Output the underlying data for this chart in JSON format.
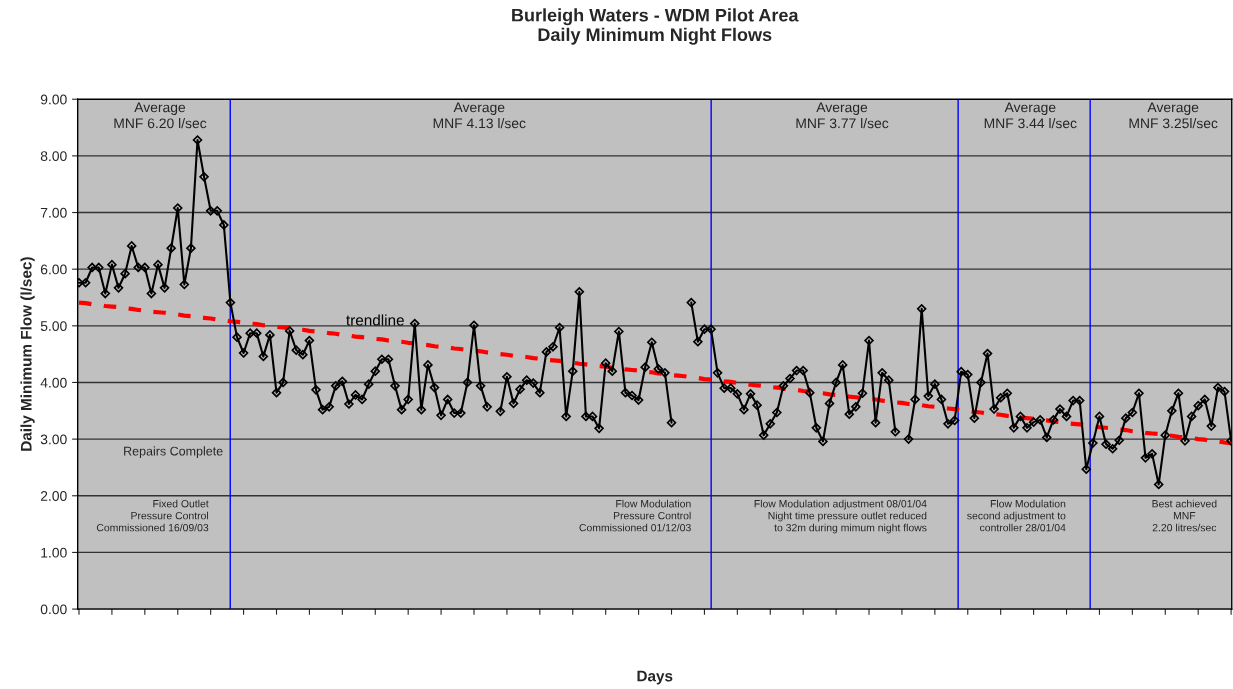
{
  "chart_data": {
    "type": "line",
    "title": "Burleigh Waters - WDM Pilot Area\nDaily Minimum Night Flows",
    "xlabel": "Days",
    "ylabel": "Daily Minimum Flow (l/sec)",
    "categories": [
      null,
      null,
      null,
      null,
      null,
      null,
      null,
      null,
      null,
      null,
      null,
      null,
      null,
      null,
      null,
      null,
      null,
      null,
      null,
      null,
      null,
      null,
      null,
      null,
      null,
      null,
      null,
      null,
      null,
      null,
      null,
      null,
      null,
      null,
      null,
      null,
      null,
      null,
      null,
      null,
      null,
      null,
      null,
      null,
      null,
      null,
      null,
      null,
      null,
      null,
      null,
      null,
      null,
      null,
      null,
      null,
      null,
      null,
      null,
      null,
      null,
      null,
      null,
      null,
      null,
      null,
      null,
      null,
      null,
      null,
      null,
      null,
      null,
      null,
      null,
      null,
      null,
      null,
      null,
      null,
      null,
      null,
      null,
      null,
      null,
      null,
      null,
      null,
      null,
      null,
      null,
      null,
      null,
      null,
      null,
      null,
      null,
      null,
      null,
      null,
      null,
      null,
      null,
      null,
      null,
      null,
      null,
      null,
      null,
      null,
      null,
      null,
      null,
      null,
      null,
      null,
      null,
      null,
      null,
      null,
      null,
      null,
      null,
      null,
      null,
      null,
      null,
      null,
      null,
      null,
      null,
      null,
      null,
      null,
      null,
      null,
      null,
      null,
      null,
      null,
      null,
      null,
      null,
      null,
      null,
      null,
      null,
      null,
      null,
      null,
      null,
      null,
      null,
      null,
      null,
      null,
      null,
      null,
      null,
      null,
      null,
      null,
      null,
      null,
      null,
      null,
      null,
      null,
      null,
      null,
      null,
      null,
      null,
      null,
      null,
      null
    ],
    "series": [
      {
        "color": "#000000",
        "marker": "diamond",
        "line_style": "solid",
        "values": [
          5.76,
          5.76,
          6.03,
          6.03,
          5.57,
          6.08,
          5.67,
          5.92,
          6.41,
          6.03,
          6.03,
          5.57,
          6.08,
          5.67,
          6.37,
          7.08,
          5.73,
          6.37,
          8.28,
          7.63,
          7.03,
          7.03,
          6.78,
          5.41,
          4.8,
          4.52,
          4.87,
          4.87,
          4.46,
          4.84,
          3.82,
          4.0,
          4.91,
          4.57,
          4.49,
          4.74,
          3.87,
          3.52,
          3.57,
          3.94,
          4.02,
          3.62,
          3.78,
          3.7,
          3.97,
          4.2,
          4.41,
          4.41,
          3.94,
          3.52,
          3.7,
          5.04,
          3.52,
          4.31,
          3.91,
          3.42,
          3.7,
          3.46,
          3.46,
          4.0,
          5.01,
          3.94,
          3.57,
          null,
          3.49,
          4.1,
          3.63,
          3.88,
          4.04,
          3.99,
          3.82,
          4.54,
          4.63,
          4.97,
          3.4,
          4.2,
          5.6,
          3.4,
          3.4,
          3.19,
          4.34,
          4.2,
          4.9,
          3.82,
          3.77,
          3.69,
          4.27,
          4.71,
          4.24,
          4.17,
          3.29,
          null,
          null,
          5.41,
          4.72,
          4.94,
          4.94,
          4.17,
          3.9,
          3.9,
          3.8,
          3.52,
          3.8,
          3.6,
          3.07,
          3.27,
          3.47,
          3.94,
          4.07,
          4.21,
          4.21,
          3.82,
          3.2,
          2.96,
          3.63,
          4.0,
          4.31,
          3.44,
          3.57,
          3.81,
          4.74,
          3.29,
          4.17,
          4.04,
          3.13,
          null,
          3.0,
          3.7,
          5.3,
          3.76,
          3.97,
          3.7,
          3.27,
          3.33,
          4.19,
          4.14,
          3.37,
          4.0,
          4.51,
          3.53,
          3.73,
          3.81,
          3.2,
          3.4,
          3.2,
          3.3,
          3.34,
          3.03,
          3.34,
          3.53,
          3.4,
          3.68,
          3.68,
          2.47,
          2.93,
          3.4,
          2.91,
          2.83,
          2.98,
          3.37,
          3.47,
          3.81,
          2.67,
          2.74,
          2.2,
          3.07,
          3.5,
          3.81,
          2.97,
          3.4,
          3.59,
          3.7,
          3.23,
          3.91,
          3.84,
          2.97
        ]
      },
      {
        "name": "trendline",
        "color": "#ff0000",
        "marker": "none",
        "line_style": "dashed",
        "values": [
          5.41,
          5.4,
          5.38,
          5.37,
          5.35,
          5.34,
          5.33,
          5.31,
          5.3,
          5.28,
          5.27,
          5.25,
          5.24,
          5.23,
          5.21,
          5.2,
          5.18,
          5.17,
          5.15,
          5.14,
          5.13,
          5.11,
          5.1,
          5.08,
          5.07,
          5.06,
          5.04,
          5.03,
          5.01,
          5.0,
          4.98,
          4.97,
          4.96,
          4.94,
          4.93,
          4.91,
          4.9,
          4.89,
          4.87,
          4.86,
          4.84,
          4.83,
          4.81,
          4.8,
          4.79,
          4.77,
          4.76,
          4.74,
          4.73,
          4.72,
          4.7,
          4.69,
          4.67,
          4.66,
          4.64,
          4.63,
          4.62,
          4.6,
          4.59,
          4.57,
          4.56,
          4.55,
          4.53,
          4.52,
          4.5,
          4.49,
          4.47,
          4.46,
          4.45,
          4.43,
          4.42,
          4.4,
          4.39,
          4.38,
          4.36,
          4.35,
          4.33,
          4.32,
          4.3,
          4.29,
          4.28,
          4.26,
          4.25,
          4.23,
          4.22,
          4.21,
          4.19,
          4.18,
          4.16,
          4.15,
          4.13,
          4.12,
          4.11,
          4.09,
          4.08,
          4.06,
          4.05,
          4.04,
          4.02,
          4.01,
          3.99,
          3.98,
          3.96,
          3.95,
          3.94,
          3.92,
          3.91,
          3.89,
          3.88,
          3.87,
          3.85,
          3.84,
          3.82,
          3.81,
          3.79,
          3.78,
          3.77,
          3.75,
          3.74,
          3.72,
          3.71,
          3.7,
          3.68,
          3.67,
          3.65,
          3.64,
          3.62,
          3.61,
          3.6,
          3.58,
          3.57,
          3.55,
          3.54,
          3.53,
          3.51,
          3.5,
          3.48,
          3.47,
          3.45,
          3.44,
          3.43,
          3.41,
          3.4,
          3.38,
          3.37,
          3.36,
          3.34,
          3.33,
          3.31,
          3.3,
          3.28,
          3.27,
          3.26,
          3.24,
          3.23,
          3.21,
          3.2,
          3.19,
          3.17,
          3.16,
          3.14,
          3.13,
          3.11,
          3.1,
          3.09,
          3.07,
          3.06,
          3.04,
          3.03,
          3.02,
          3.0,
          2.99,
          2.97,
          2.96,
          2.94,
          2.93
        ]
      }
    ],
    "ylim": [
      0,
      9
    ],
    "yticks": [
      {
        "value": 0,
        "label": "0.00"
      },
      {
        "value": 1,
        "label": "1.00"
      },
      {
        "value": 2,
        "label": "2.00"
      },
      {
        "value": 3,
        "label": "3.00"
      },
      {
        "value": 4,
        "label": "4.00"
      },
      {
        "value": 5,
        "label": "5.00"
      },
      {
        "value": 6,
        "label": "6.00"
      },
      {
        "value": 7,
        "label": "7.00"
      },
      {
        "value": 8,
        "label": "8.00"
      },
      {
        "value": 9,
        "label": "9.00"
      }
    ],
    "tick_labels": "y",
    "grid": "y",
    "legend": false,
    "annotations": [
      "Average\nMNF 6.20 l/sec",
      "Average\nMNF 4.13 l/sec",
      "Average\nMNF 3.77 l/sec",
      "Average\nMNF 3.44 l/sec",
      "Average\nMNF 3.25l/sec",
      "Repairs Complete",
      "Fixed Outlet\nPressure Control\nCommissioned 16/09/03",
      "Flow Modulation\nPressure Control\nCommissioned 01/12/03",
      "Flow Modulation adjustment 08/01/04\nNight time pressure outlet reduced\nto 32m during mimum night flows",
      "Flow Modulation\nsecond adjustment to\ncontroller 28/01/04",
      "Best achieved\nMNF\n2.20 litres/sec"
    ]
  }
}
